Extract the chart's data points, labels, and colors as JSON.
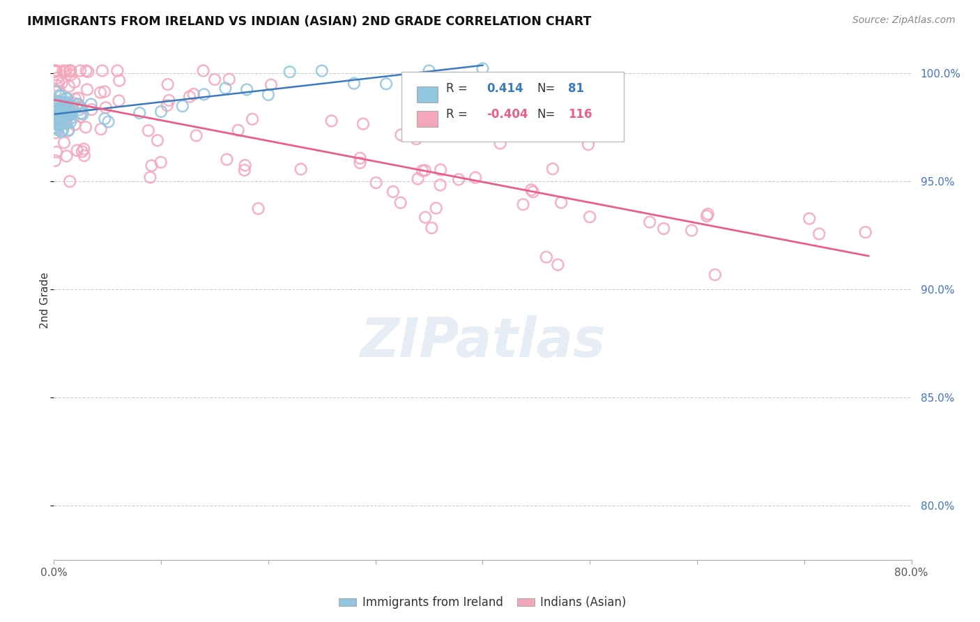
{
  "title": "IMMIGRANTS FROM IRELAND VS INDIAN (ASIAN) 2ND GRADE CORRELATION CHART",
  "source_text": "Source: ZipAtlas.com",
  "ylabel": "2nd Grade",
  "ytick_labels": [
    "100.0%",
    "95.0%",
    "90.0%",
    "85.0%",
    "80.0%"
  ],
  "ytick_values": [
    1.0,
    0.95,
    0.9,
    0.85,
    0.8
  ],
  "xlim": [
    0.0,
    0.8
  ],
  "ylim": [
    0.775,
    1.015
  ],
  "blue_R": 0.414,
  "blue_N": 81,
  "pink_R": -0.404,
  "pink_N": 116,
  "blue_color": "#92c5de",
  "pink_color": "#f4a6bb",
  "blue_line_color": "#3a7abf",
  "pink_line_color": "#e8608a",
  "watermark_color": "#c8d8e8",
  "legend_R_color": "#333333",
  "legend_blue_val_color": "#3a7abf",
  "legend_pink_val_color": "#e8608a"
}
